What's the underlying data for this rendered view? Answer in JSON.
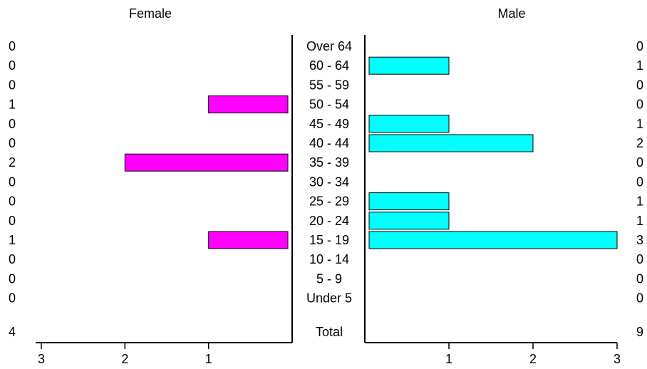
{
  "chart_data": {
    "type": "bar",
    "left_title": "Female",
    "right_title": "Male",
    "categories": [
      "Over 64",
      "60 - 64",
      "55 - 59",
      "50 - 54",
      "45 - 49",
      "40 - 44",
      "35 - 39",
      "30 - 34",
      "25 - 29",
      "20 - 24",
      "15 - 19",
      "10 - 14",
      "5 - 9",
      "Under 5"
    ],
    "series": [
      {
        "name": "Female",
        "values": [
          0,
          0,
          0,
          1,
          0,
          0,
          2,
          0,
          0,
          0,
          1,
          0,
          0,
          0
        ],
        "color": "#ff00ff"
      },
      {
        "name": "Male",
        "values": [
          0,
          1,
          0,
          0,
          1,
          2,
          0,
          0,
          1,
          1,
          3,
          0,
          0,
          0
        ],
        "color": "#00ffff"
      }
    ],
    "total_label": "Total",
    "totals": {
      "female": 4,
      "male": 9
    },
    "xlim": [
      0,
      3
    ],
    "x_ticks": [
      1,
      2,
      3
    ]
  }
}
